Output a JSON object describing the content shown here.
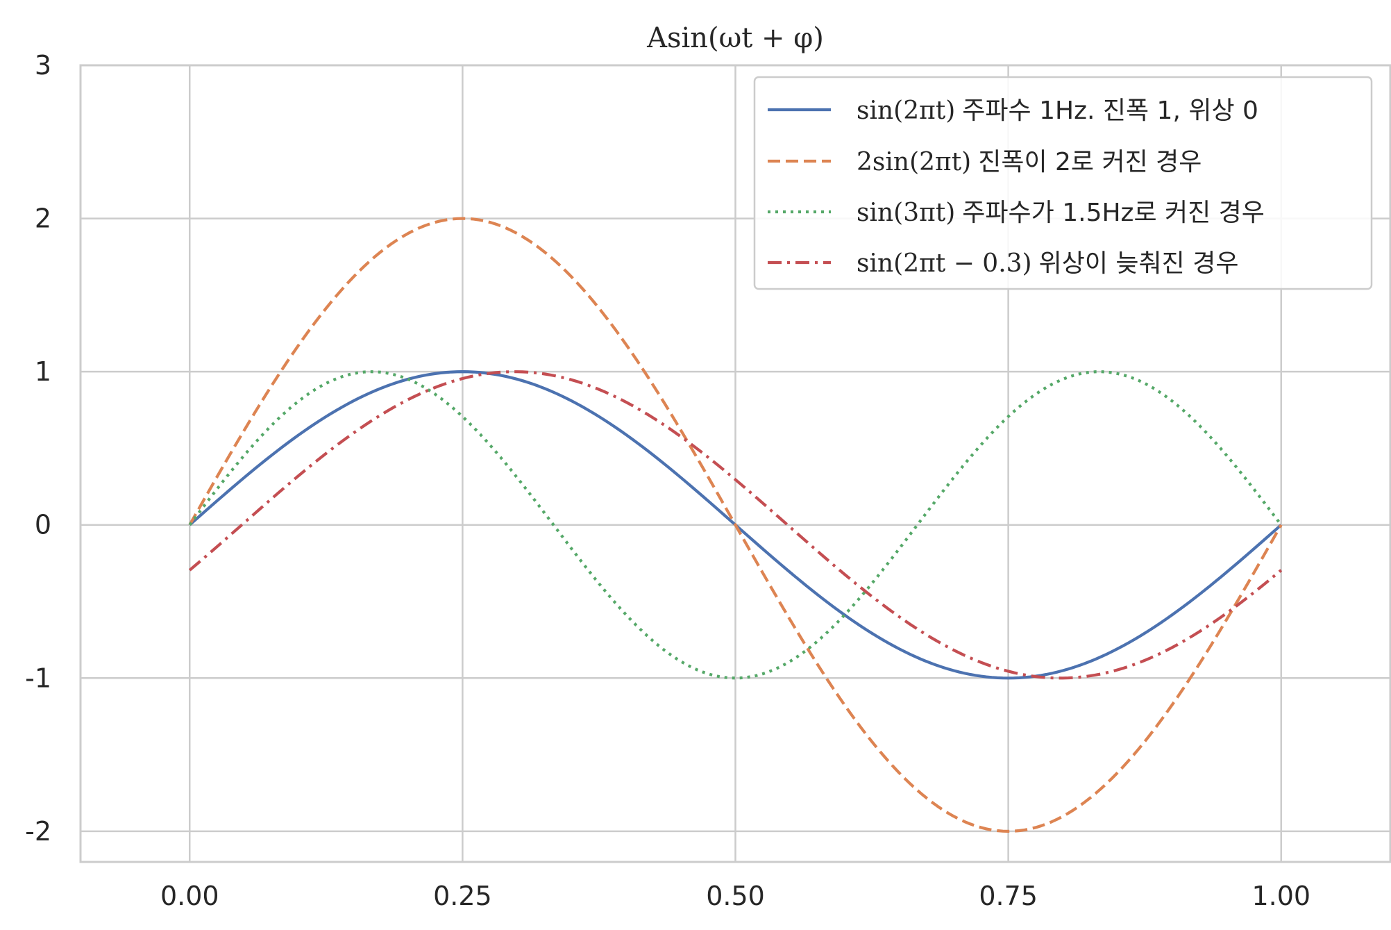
{
  "chart_data": {
    "type": "line",
    "title": "Asin(ωt + φ)",
    "xlabel": "",
    "ylabel": "",
    "xlim": [
      -0.1,
      1.1
    ],
    "ylim": [
      -2.2,
      3
    ],
    "xticks": [
      0,
      0.25,
      0.5,
      0.75,
      1
    ],
    "xtick_labels": [
      "0.00",
      "0.25",
      "0.50",
      "0.75",
      "1.00"
    ],
    "yticks": [
      -2,
      -1,
      0,
      1,
      2,
      3
    ],
    "ytick_labels": [
      "-2",
      "-1",
      "0",
      "1",
      "2",
      "3"
    ],
    "grid": true,
    "legend_position": "top-right",
    "x_range": [
      0,
      1
    ],
    "samples": 201,
    "series": [
      {
        "name_math": "sin(2πt)",
        "name_text": "주파수 1Hz. 진폭 1, 위상 0",
        "amplitude": 1,
        "frequency_hz": 1,
        "phase": 0,
        "color": "#4c72b0",
        "dash": ""
      },
      {
        "name_math": "2sin(2πt)",
        "name_text": "진폭이 2로 커진 경우",
        "amplitude": 2,
        "frequency_hz": 1,
        "phase": 0,
        "color": "#dd8452",
        "dash": "18,8"
      },
      {
        "name_math": "sin(3πt)",
        "name_text": "주파수가 1.5Hz로 커진 경우",
        "amplitude": 1,
        "frequency_hz": 1.5,
        "phase": 0,
        "color": "#55a868",
        "dash": "4,7"
      },
      {
        "name_math": "sin(2πt − 0.3)",
        "name_text": "위상이 늦춰진 경우",
        "amplitude": 1,
        "frequency_hz": 1,
        "phase": -0.3,
        "color": "#c44e52",
        "dash": "20,8,4,8"
      }
    ]
  }
}
